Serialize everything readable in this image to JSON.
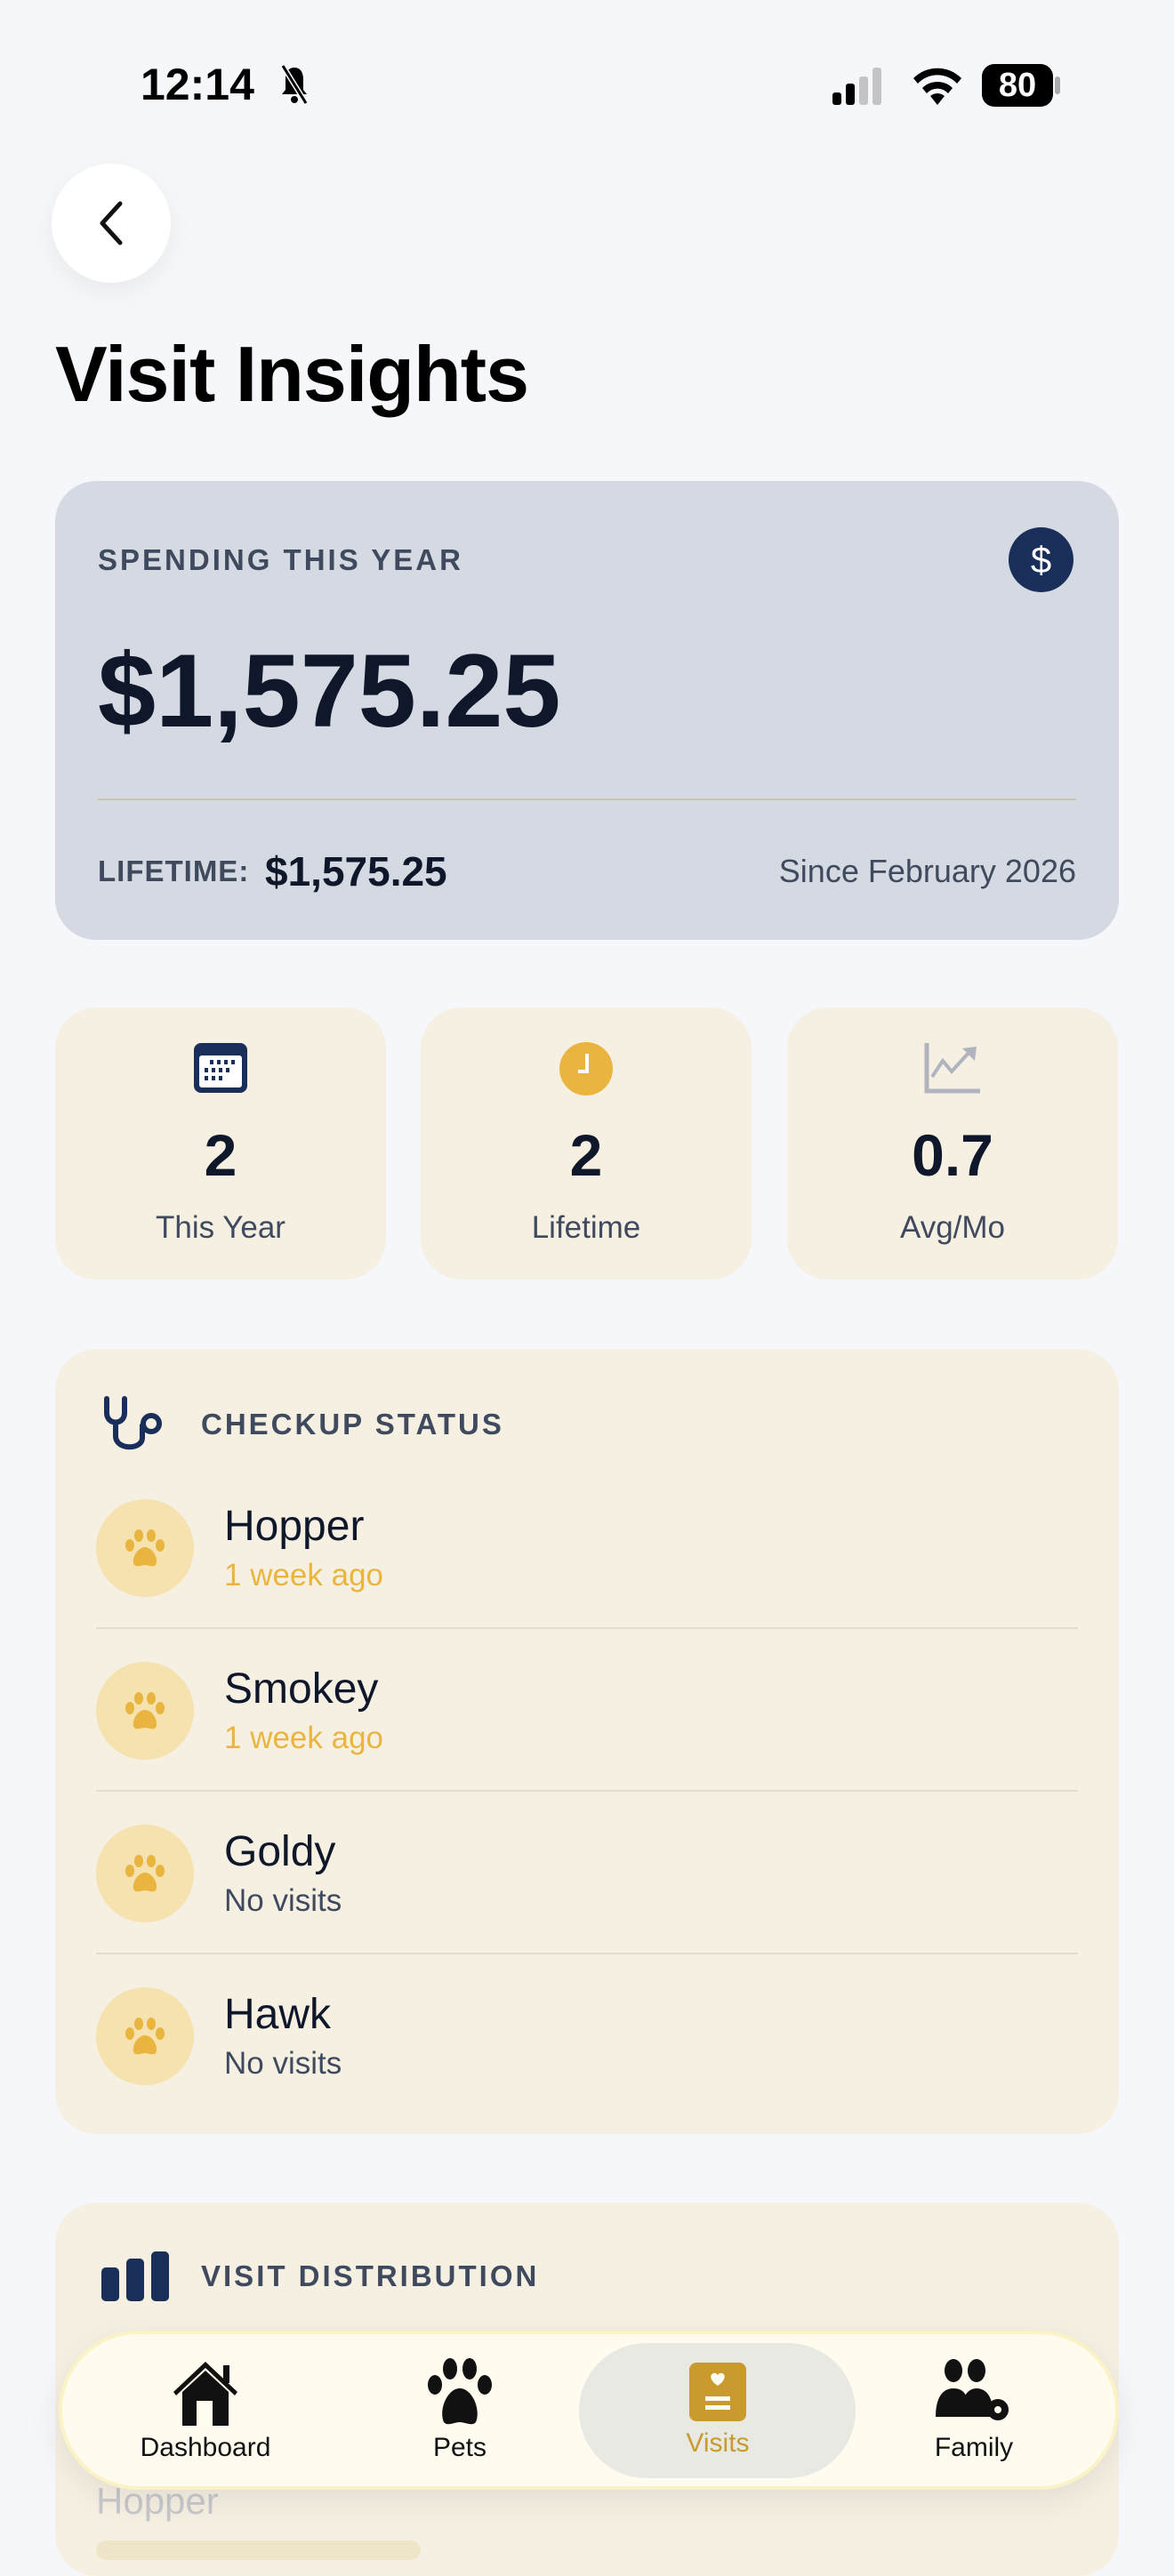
{
  "status_bar": {
    "time": "12:14",
    "battery": "80"
  },
  "header": {
    "title": "Visit Insights"
  },
  "spending": {
    "label": "SPENDING THIS YEAR",
    "amount": "$1,575.25",
    "lifetime_label": "LIFETIME:",
    "lifetime_amount": "$1,575.25",
    "since": "Since February 2026",
    "icon": "dollar-icon"
  },
  "stats": [
    {
      "value": "2",
      "label": "This Year",
      "icon": "calendar-icon"
    },
    {
      "value": "2",
      "label": "Lifetime",
      "icon": "clock-icon"
    },
    {
      "value": "0.7",
      "label": "Avg/Mo",
      "icon": "chart-line-icon"
    }
  ],
  "checkup": {
    "title": "CHECKUP STATUS",
    "pets": [
      {
        "name": "Hopper",
        "status": "1 week ago"
      },
      {
        "name": "Smokey",
        "status": "1 week ago"
      },
      {
        "name": "Goldy",
        "status": "No visits"
      },
      {
        "name": "Hawk",
        "status": "No visits"
      }
    ]
  },
  "distribution": {
    "title": "VISIT DISTRIBUTION",
    "first_pet": "Hopper"
  },
  "nav": {
    "items": [
      {
        "label": "Dashboard"
      },
      {
        "label": "Pets"
      },
      {
        "label": "Visits",
        "active": true
      },
      {
        "label": "Family"
      }
    ]
  },
  "colors": {
    "accent": "#e9b53f",
    "navy": "#1a2e5a",
    "active_tab": "#c99a2e"
  }
}
